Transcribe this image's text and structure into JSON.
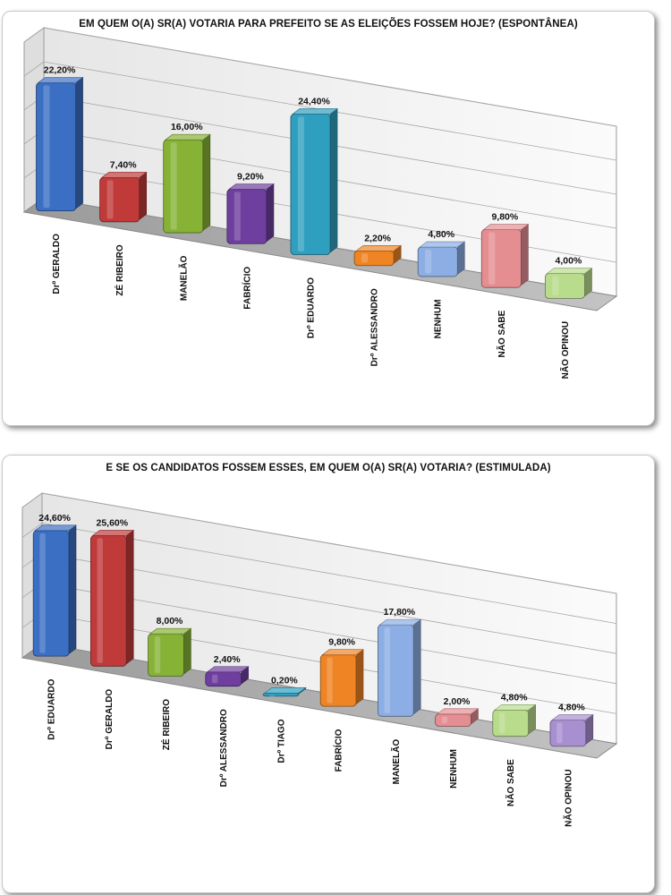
{
  "chart_data": [
    {
      "type": "bar",
      "title": "EM QUEM O(A) SR(A) VOTARIA PARA PREFEITO SE AS ELEIÇÕES FOSSEM HOJE? (ESPONTÂNEA)",
      "categories": [
        "Drº GERALDO",
        "ZÉ RIBEIRO",
        "MANELÃO",
        "FABRÍCIO",
        "Drº EDUARDO",
        "Drº ALESSANDRO",
        "NENHUM",
        "NÃO SABE",
        "NÃO OPINOU"
      ],
      "values": [
        22.2,
        7.4,
        16.0,
        9.2,
        24.4,
        2.2,
        4.8,
        9.8,
        4.0
      ],
      "labels": [
        "22,20%",
        "7,40%",
        "16,00%",
        "9,20%",
        "24,40%",
        "2,20%",
        "4,80%",
        "9,80%",
        "4,00%"
      ],
      "colors": [
        "#3a6fc4",
        "#c03a3a",
        "#86b236",
        "#6e3f9e",
        "#2f9fbf",
        "#ef8424",
        "#8caee4",
        "#e58e92",
        "#b8dc8c"
      ],
      "xlabel": "",
      "ylabel": "",
      "ylim": [
        0,
        30
      ],
      "grid": true,
      "legend": "none",
      "style": "3d"
    },
    {
      "type": "bar",
      "title": "E SE OS CANDIDATOS FOSSEM ESSES, EM QUEM O(A) SR(A) VOTARIA? (ESTIMULADA)",
      "categories": [
        "Drº EDUARDO",
        "Drº GERALDO",
        "ZÉ RIBEIRO",
        "Drº ALESSANDRO",
        "Drº TIAGO",
        "FABRÍCIO",
        "MANELÃO",
        "NENHUM",
        "NÃO SABE",
        "NÃO OPINOU"
      ],
      "values": [
        24.6,
        25.6,
        8.0,
        2.4,
        0.2,
        9.8,
        17.8,
        2.0,
        4.8,
        4.8
      ],
      "labels": [
        "24,60%",
        "25,60%",
        "8,00%",
        "2,40%",
        "0,20%",
        "9,80%",
        "17,80%",
        "2,00%",
        "4,80%",
        "4,80%"
      ],
      "colors": [
        "#3a6fc4",
        "#c03a3a",
        "#86b236",
        "#6e3f9e",
        "#2f9fbf",
        "#ef8424",
        "#8caee4",
        "#e58e92",
        "#b8dc8c",
        "#a890d0"
      ],
      "xlabel": "",
      "ylabel": "",
      "ylim": [
        0,
        30
      ],
      "grid": true,
      "legend": "none",
      "style": "3d"
    }
  ]
}
